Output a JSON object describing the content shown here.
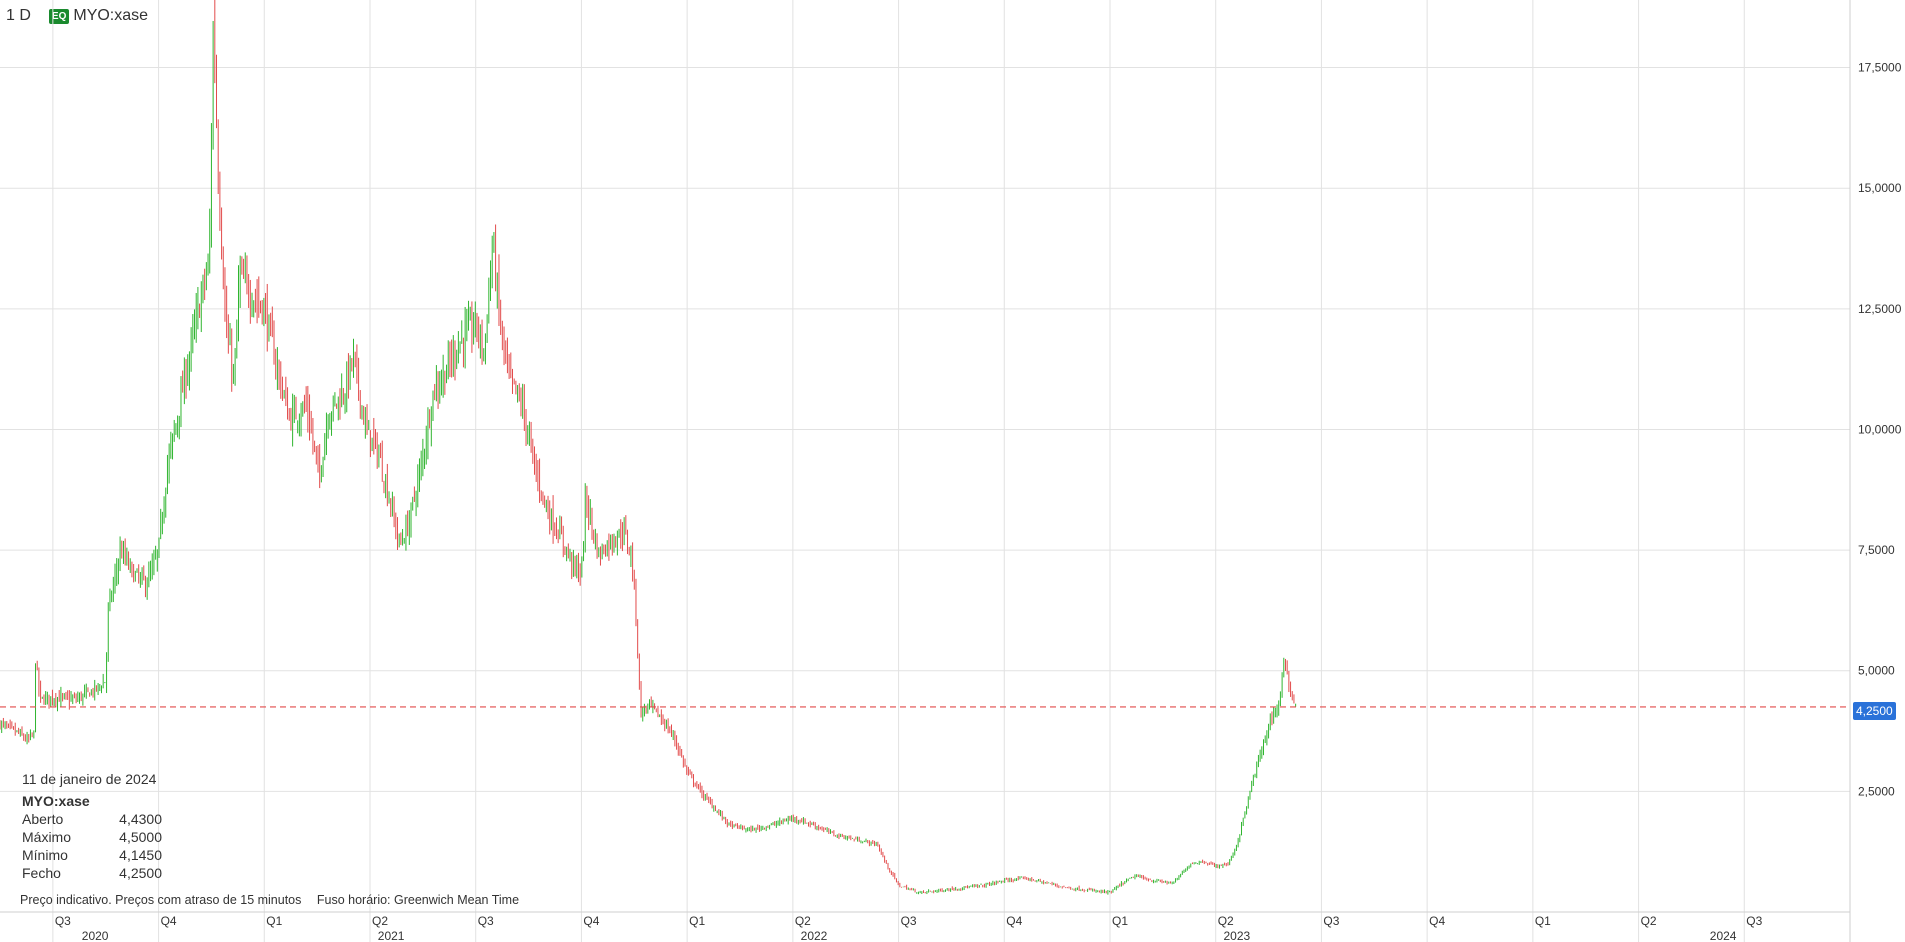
{
  "header": {
    "interval": "1 D",
    "badge": "EQ",
    "symbol": "MYO:xase"
  },
  "info_panel": {
    "date": "11 de janeiro de 2024",
    "symbol": "MYO:xase",
    "rows": [
      {
        "label": "Aberto",
        "value": "4,4300"
      },
      {
        "label": "Máximo",
        "value": "4,5000"
      },
      {
        "label": "Mínimo",
        "value": "4,1450"
      },
      {
        "label": "Fecho",
        "value": "4,2500"
      }
    ]
  },
  "footer": {
    "note": "Preço indicativo. Preços com atraso de 15 minutos",
    "timezone": "Fuso horário: Greenwich Mean Time"
  },
  "current_price": {
    "label": "4,2500",
    "value": 4.25
  },
  "colors": {
    "up": "#2fb52f",
    "down": "#e24b4b",
    "grid": "#e2e2e2",
    "last_price_line": "#e24b4b",
    "price_tag": "#2a72d9"
  },
  "chart_data": {
    "type": "candlestick",
    "ylim": [
      0,
      18.9
    ],
    "y_ticks": [
      {
        "value": 2.5,
        "label": "2,5000"
      },
      {
        "value": 5.0,
        "label": "5,0000"
      },
      {
        "value": 7.5,
        "label": "7,5000"
      },
      {
        "value": 10.0,
        "label": "10,0000"
      },
      {
        "value": 12.5,
        "label": "12,5000"
      },
      {
        "value": 15.0,
        "label": "15,0000"
      },
      {
        "value": 17.5,
        "label": "17,5000"
      }
    ],
    "xlim": [
      2020.375,
      2024.75
    ],
    "x_quarter_ticks": [
      {
        "t": 2020.5,
        "label": "Q3"
      },
      {
        "t": 2020.75,
        "label": "Q4"
      },
      {
        "t": 2021.0,
        "label": "Q1"
      },
      {
        "t": 2021.25,
        "label": "Q2"
      },
      {
        "t": 2021.5,
        "label": "Q3"
      },
      {
        "t": 2021.75,
        "label": "Q4"
      },
      {
        "t": 2022.0,
        "label": "Q1"
      },
      {
        "t": 2022.25,
        "label": "Q2"
      },
      {
        "t": 2022.5,
        "label": "Q3"
      },
      {
        "t": 2022.75,
        "label": "Q4"
      },
      {
        "t": 2023.0,
        "label": "Q1"
      },
      {
        "t": 2023.25,
        "label": "Q2"
      },
      {
        "t": 2023.5,
        "label": "Q3"
      },
      {
        "t": 2023.75,
        "label": "Q4"
      },
      {
        "t": 2024.0,
        "label": "Q1"
      },
      {
        "t": 2024.25,
        "label": "Q2"
      },
      {
        "t": 2024.5,
        "label": "Q3"
      }
    ],
    "x_year_labels": [
      {
        "t": 2020.6,
        "label": "2020"
      },
      {
        "t": 2021.3,
        "label": "2021"
      },
      {
        "t": 2022.3,
        "label": "2022"
      },
      {
        "t": 2023.3,
        "label": "2023"
      },
      {
        "t": 2024.45,
        "label": "2024"
      }
    ],
    "last_price": 4.25,
    "close_path": [
      [
        2020.375,
        3.9
      ],
      [
        2020.42,
        3.7
      ],
      [
        2020.44,
        3.55
      ],
      [
        2020.455,
        3.7
      ],
      [
        2020.458,
        5.3
      ],
      [
        2020.47,
        4.4
      ],
      [
        2020.5,
        4.45
      ],
      [
        2020.55,
        4.4
      ],
      [
        2020.6,
        4.6
      ],
      [
        2020.625,
        4.8
      ],
      [
        2020.63,
        6.2
      ],
      [
        2020.66,
        7.5
      ],
      [
        2020.69,
        7.0
      ],
      [
        2020.72,
        6.8
      ],
      [
        2020.74,
        7.2
      ],
      [
        2020.75,
        7.5
      ],
      [
        2020.77,
        9.2
      ],
      [
        2020.8,
        10.5
      ],
      [
        2020.84,
        12.3
      ],
      [
        2020.87,
        13.5
      ],
      [
        2020.88,
        18.8
      ],
      [
        2020.885,
        17.0
      ],
      [
        2020.89,
        15.5
      ],
      [
        2020.91,
        12.0
      ],
      [
        2020.93,
        11.0
      ],
      [
        2020.94,
        13.2
      ],
      [
        2020.97,
        12.8
      ],
      [
        2021.0,
        12.5
      ],
      [
        2021.03,
        11.3
      ],
      [
        2021.06,
        10.2
      ],
      [
        2021.1,
        10.5
      ],
      [
        2021.13,
        9.0
      ],
      [
        2021.15,
        10.3
      ],
      [
        2021.19,
        10.8
      ],
      [
        2021.21,
        11.5
      ],
      [
        2021.24,
        10.0
      ],
      [
        2021.27,
        9.5
      ],
      [
        2021.3,
        8.4
      ],
      [
        2021.32,
        7.6
      ],
      [
        2021.34,
        8.0
      ],
      [
        2021.37,
        9.2
      ],
      [
        2021.4,
        10.8
      ],
      [
        2021.43,
        11.2
      ],
      [
        2021.46,
        11.8
      ],
      [
        2021.5,
        12.2
      ],
      [
        2021.52,
        11.6
      ],
      [
        2021.54,
        13.9
      ],
      [
        2021.56,
        12.0
      ],
      [
        2021.58,
        11.0
      ],
      [
        2021.61,
        10.5
      ],
      [
        2021.64,
        9.2
      ],
      [
        2021.67,
        8.3
      ],
      [
        2021.7,
        7.8
      ],
      [
        2021.73,
        7.2
      ],
      [
        2021.75,
        7.0
      ],
      [
        2021.76,
        8.6
      ],
      [
        2021.79,
        7.4
      ],
      [
        2021.82,
        7.7
      ],
      [
        2021.85,
        7.9
      ],
      [
        2021.87,
        7.3
      ],
      [
        2021.88,
        6.0
      ],
      [
        2021.89,
        4.1
      ],
      [
        2021.91,
        4.3
      ],
      [
        2021.94,
        4.0
      ],
      [
        2021.97,
        3.6
      ],
      [
        2022.0,
        2.9
      ],
      [
        2022.04,
        2.4
      ],
      [
        2022.07,
        2.1
      ],
      [
        2022.1,
        1.8
      ],
      [
        2022.15,
        1.7
      ],
      [
        2022.2,
        1.8
      ],
      [
        2022.25,
        1.95
      ],
      [
        2022.3,
        1.8
      ],
      [
        2022.35,
        1.6
      ],
      [
        2022.4,
        1.5
      ],
      [
        2022.45,
        1.4
      ],
      [
        2022.47,
        1.0
      ],
      [
        2022.5,
        0.55
      ],
      [
        2022.55,
        0.4
      ],
      [
        2022.6,
        0.45
      ],
      [
        2022.65,
        0.5
      ],
      [
        2022.7,
        0.55
      ],
      [
        2022.75,
        0.65
      ],
      [
        2022.8,
        0.7
      ],
      [
        2022.85,
        0.6
      ],
      [
        2022.9,
        0.5
      ],
      [
        2022.95,
        0.45
      ],
      [
        2023.0,
        0.4
      ],
      [
        2023.03,
        0.6
      ],
      [
        2023.06,
        0.75
      ],
      [
        2023.1,
        0.65
      ],
      [
        2023.15,
        0.6
      ],
      [
        2023.19,
        1.0
      ],
      [
        2023.22,
        1.05
      ],
      [
        2023.25,
        0.95
      ],
      [
        2023.28,
        1.0
      ],
      [
        2023.3,
        1.4
      ],
      [
        2023.32,
        2.1
      ],
      [
        2023.34,
        2.8
      ],
      [
        2023.36,
        3.4
      ],
      [
        2023.38,
        4.0
      ],
      [
        2023.4,
        4.3
      ],
      [
        2023.41,
        5.2
      ],
      [
        2023.42,
        4.8
      ],
      [
        2023.43,
        4.5
      ],
      [
        2023.44,
        4.25
      ]
    ]
  }
}
